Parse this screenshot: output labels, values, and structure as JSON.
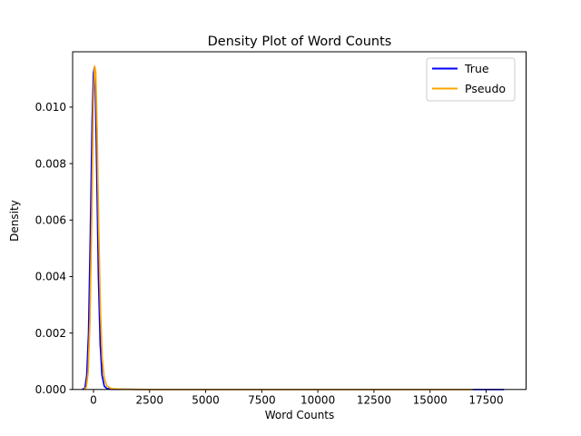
{
  "figure": {
    "title": "Density Plot of Word Counts",
    "background_color": "#ffffff"
  },
  "axes": {
    "xlabel": "Word Counts",
    "ylabel": "Density",
    "xtick_labels": [
      "0",
      "2500",
      "5000",
      "7500",
      "10000",
      "12500",
      "15000",
      "17500"
    ],
    "ytick_labels": [
      "0.000",
      "0.002",
      "0.004",
      "0.006",
      "0.008",
      "0.010"
    ],
    "spine_color": "#000000"
  },
  "legend": {
    "position": "upper right",
    "frame_color": "#cccccc",
    "items": [
      {
        "label": "True",
        "color": "#0000ff"
      },
      {
        "label": "Pseudo",
        "color": "#ffa500"
      }
    ]
  },
  "chart_data": {
    "type": "line",
    "title": "Density Plot of Word Counts",
    "xlabel": "Word Counts",
    "ylabel": "Density",
    "xlim": [
      -930,
      19280
    ],
    "ylim": [
      0,
      0.01196
    ],
    "xticks": [
      0,
      2500,
      5000,
      7500,
      10000,
      12500,
      15000,
      17500
    ],
    "yticks": [
      0,
      0.002,
      0.004,
      0.006,
      0.008,
      0.01
    ],
    "grid": false,
    "legend_position": "upper right",
    "series": [
      {
        "name": "True",
        "color": "#0000ff",
        "points": [
          [
            -500,
            0
          ],
          [
            -380,
            5e-05
          ],
          [
            -300,
            0.0005
          ],
          [
            -220,
            0.002
          ],
          [
            -140,
            0.0055
          ],
          [
            -60,
            0.0095
          ],
          [
            0,
            0.0112
          ],
          [
            40,
            0.0114
          ],
          [
            90,
            0.0105
          ],
          [
            150,
            0.0075
          ],
          [
            220,
            0.004
          ],
          [
            300,
            0.0016
          ],
          [
            380,
            0.0005
          ],
          [
            480,
            0.00012
          ],
          [
            600,
            3e-05
          ],
          [
            900,
            1e-05
          ],
          [
            2000,
            0
          ],
          [
            4000,
            0
          ],
          [
            7000,
            0
          ],
          [
            10000,
            0
          ],
          [
            13000,
            0
          ],
          [
            16000,
            0
          ],
          [
            17500,
            0
          ],
          [
            18300,
            0
          ]
        ]
      },
      {
        "name": "Pseudo",
        "color": "#ffa500",
        "points": [
          [
            -420,
            0
          ],
          [
            -320,
            8e-05
          ],
          [
            -240,
            0.0006
          ],
          [
            -160,
            0.0024
          ],
          [
            -80,
            0.006
          ],
          [
            -10,
            0.01
          ],
          [
            50,
            0.01145
          ],
          [
            100,
            0.01125
          ],
          [
            160,
            0.0092
          ],
          [
            230,
            0.0058
          ],
          [
            310,
            0.0028
          ],
          [
            390,
            0.0011
          ],
          [
            480,
            0.0004
          ],
          [
            600,
            0.00012
          ],
          [
            800,
            3e-05
          ],
          [
            1200,
            1e-05
          ],
          [
            2500,
            0
          ],
          [
            5000,
            0
          ],
          [
            8000,
            0
          ],
          [
            11000,
            0
          ],
          [
            14000,
            0
          ],
          [
            16900,
            0
          ]
        ]
      }
    ]
  }
}
